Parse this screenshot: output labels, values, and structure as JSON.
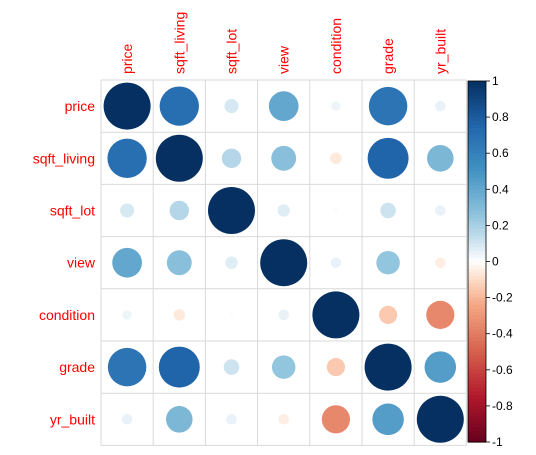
{
  "chart_data": {
    "type": "heatmap",
    "variables": [
      "price",
      "sqft_living",
      "sqft_lot",
      "view",
      "condition",
      "grade",
      "yr_built"
    ],
    "matrix": [
      [
        1.0,
        0.7,
        0.09,
        0.4,
        0.04,
        0.67,
        0.05
      ],
      [
        0.7,
        1.0,
        0.17,
        0.28,
        -0.06,
        0.76,
        0.32
      ],
      [
        0.09,
        0.17,
        1.0,
        0.07,
        -0.01,
        0.11,
        0.05
      ],
      [
        0.4,
        0.28,
        0.07,
        1.0,
        0.05,
        0.25,
        -0.05
      ],
      [
        0.04,
        -0.06,
        -0.01,
        0.05,
        1.0,
        -0.15,
        -0.36
      ],
      [
        0.67,
        0.76,
        0.11,
        0.25,
        -0.15,
        1.0,
        0.45
      ],
      [
        0.05,
        0.32,
        0.05,
        -0.05,
        -0.36,
        0.45,
        1.0
      ]
    ],
    "colorbar": {
      "min": -1,
      "max": 1,
      "ticks": [
        "1",
        "0.8",
        "0.6",
        "0.4",
        "0.2",
        "0",
        "-0.2",
        "-0.4",
        "-0.6",
        "-0.8",
        "-1"
      ]
    },
    "title": "",
    "colors": {
      "negative_end": "#67001f",
      "positive_end": "#053061",
      "label_text": "#ff0000",
      "grid": "#d9d9d9"
    }
  }
}
